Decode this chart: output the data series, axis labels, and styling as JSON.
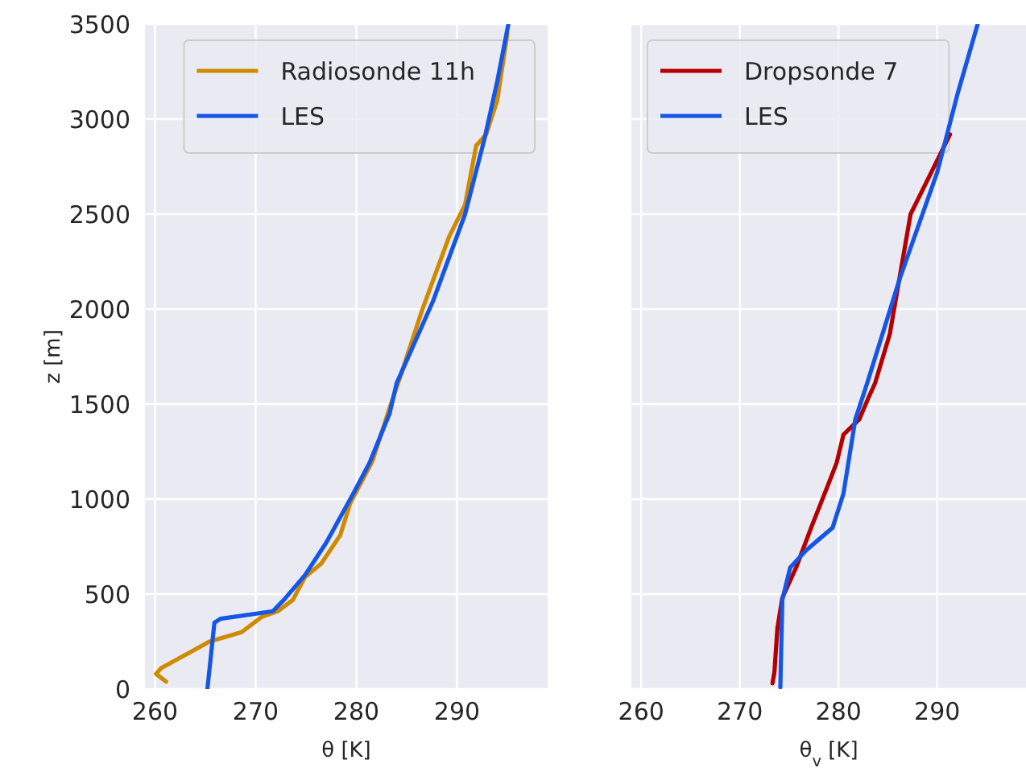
{
  "chart_data": [
    {
      "type": "line",
      "xlabel": "θ [K]",
      "ylabel": "z [m]",
      "xlim": [
        259,
        299
      ],
      "ylim": [
        0,
        3500
      ],
      "xticks": [
        260,
        270,
        280,
        290
      ],
      "yticks": [
        0,
        500,
        1000,
        1500,
        2000,
        2500,
        3000,
        3500
      ],
      "grid": true,
      "legend": "top right",
      "series": [
        {
          "name": "Radiosonde 11h",
          "color": "#d08a00",
          "x": [
            261.1,
            260.1,
            260.6,
            265.4,
            268.6,
            270.6,
            272.2,
            273.7,
            274.9,
            276.5,
            278.4,
            279.4,
            281.6,
            283.3,
            284.4,
            286.5,
            289.2,
            290.8,
            291.9,
            292.9,
            294.0,
            295.0
          ],
          "values": [
            40,
            80,
            110,
            250,
            300,
            380,
            410,
            470,
            590,
            660,
            810,
            980,
            1200,
            1480,
            1650,
            1990,
            2380,
            2550,
            2860,
            2920,
            3100,
            3450
          ]
        },
        {
          "name": "LES",
          "color": "#1556e6",
          "x": [
            265.2,
            265.9,
            266.5,
            271.7,
            272.8,
            274.9,
            277.0,
            279.7,
            281.3,
            283.3,
            284.0,
            287.6,
            290.8,
            292.7,
            294.0,
            295.1
          ],
          "values": [
            0,
            350,
            370,
            410,
            470,
            600,
            770,
            1030,
            1190,
            1450,
            1610,
            2040,
            2500,
            2890,
            3200,
            3500
          ]
        }
      ]
    },
    {
      "type": "line",
      "xlabel": "θ$_{v}$ [K]",
      "xlim": [
        259,
        299
      ],
      "ylim": [
        0,
        3500
      ],
      "xticks": [
        260,
        270,
        280,
        290
      ],
      "yticks": [
        0,
        500,
        1000,
        1500,
        2000,
        2500,
        3000,
        3500
      ],
      "tick_labels": "x",
      "grid": true,
      "legend": "top left",
      "series": [
        {
          "name": "Dropsonde 7",
          "color": "#b40000",
          "x": [
            273.3,
            273.5,
            273.8,
            274.3,
            275.7,
            277.3,
            278.9,
            279.8,
            280.5,
            282.1,
            283.0,
            283.7,
            285.2,
            287.3,
            289.4,
            291.3
          ],
          "values": [
            30,
            90,
            320,
            480,
            640,
            860,
            1070,
            1190,
            1340,
            1420,
            1530,
            1610,
            1870,
            2500,
            2720,
            2920
          ]
        },
        {
          "name": "LES",
          "color": "#1556e6",
          "x": [
            274.1,
            274.3,
            275.1,
            276.7,
            279.4,
            280.5,
            281.7,
            282.9,
            286.2,
            290.0,
            292.1,
            294.1
          ],
          "values": [
            10,
            470,
            640,
            730,
            850,
            1030,
            1420,
            1610,
            2160,
            2720,
            3140,
            3500
          ]
        }
      ]
    }
  ]
}
